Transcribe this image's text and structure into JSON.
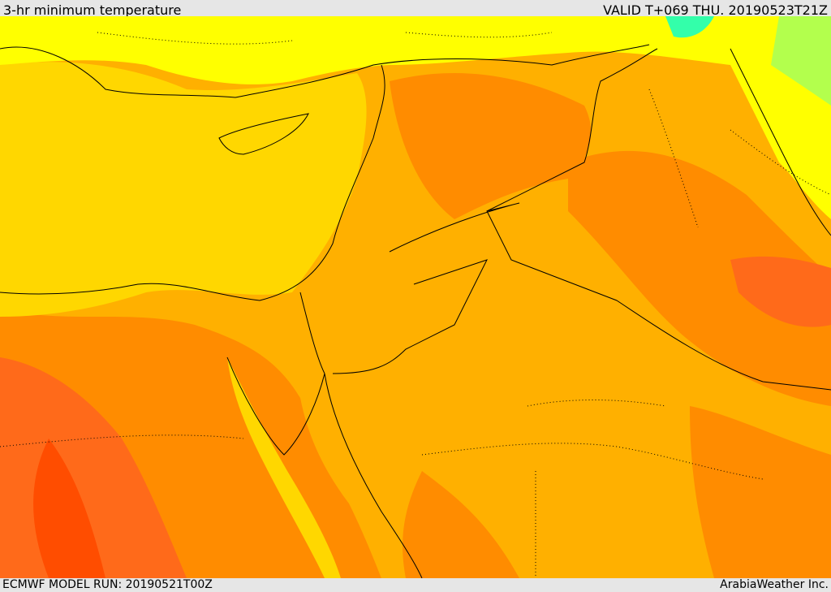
{
  "header": {
    "title": "3-hr minimum temperature",
    "valid": "VALID T+069 THU. 20190523T21Z"
  },
  "footer": {
    "model_run": "ECMWF MODEL RUN: 20190521T00Z",
    "credit": "ArabiaWeather Inc."
  },
  "colors": {
    "coolest": "#33ffaa",
    "cool": "#b3ff4d",
    "mild": "#ffff00",
    "warm": "#ffd700",
    "warmer": "#ffb000",
    "hot": "#ff8c00",
    "hotter": "#ff6a1a",
    "hottest": "#ff4d00"
  }
}
